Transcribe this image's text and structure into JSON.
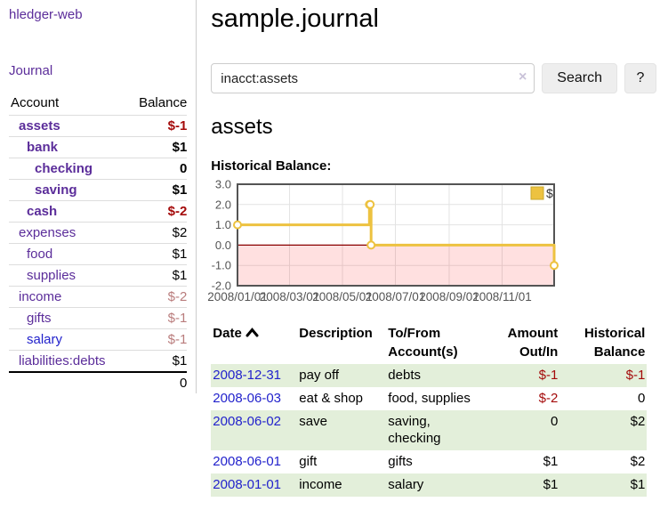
{
  "app": {
    "brand": "hledger-web"
  },
  "sidebar": {
    "nav_journal": "Journal",
    "accounts": {
      "col_account": "Account",
      "col_balance": "Balance",
      "rows": [
        {
          "name": "assets",
          "balance": "$-1",
          "indent": 1,
          "emph": true,
          "amount": "neg",
          "link": "purple"
        },
        {
          "name": "bank",
          "balance": "$1",
          "indent": 2,
          "emph": true,
          "amount": "pos",
          "link": "purple"
        },
        {
          "name": "checking",
          "balance": "0",
          "indent": 3,
          "emph": true,
          "amount": "pos",
          "link": "purple"
        },
        {
          "name": "saving",
          "balance": "$1",
          "indent": 3,
          "emph": true,
          "amount": "pos",
          "link": "purple"
        },
        {
          "name": "cash",
          "balance": "$-2",
          "indent": 2,
          "emph": true,
          "amount": "neg",
          "link": "purple"
        },
        {
          "name": "expenses",
          "balance": "$2",
          "indent": 1,
          "emph": false,
          "amount": "pos",
          "link": "purple"
        },
        {
          "name": "food",
          "balance": "$1",
          "indent": 2,
          "emph": false,
          "amount": "pos",
          "link": "purple"
        },
        {
          "name": "supplies",
          "balance": "$1",
          "indent": 2,
          "emph": false,
          "amount": "pos",
          "link": "purple"
        },
        {
          "name": "income",
          "balance": "$-2",
          "indent": 1,
          "emph": false,
          "amount": "negmuted",
          "link": "purple"
        },
        {
          "name": "gifts",
          "balance": "$-1",
          "indent": 2,
          "emph": false,
          "amount": "negmuted",
          "link": "purple"
        },
        {
          "name": "salary",
          "balance": "$-1",
          "indent": 2,
          "emph": false,
          "amount": "negmuted",
          "link": "blue"
        },
        {
          "name": "liabilities:debts",
          "balance": "$1",
          "indent": 1,
          "emph": false,
          "amount": "pos",
          "link": "purple"
        }
      ],
      "total": "0"
    }
  },
  "main": {
    "title": "sample.journal",
    "search": {
      "value": "inacct:assets",
      "clear_icon": "×",
      "button": "Search",
      "help_button": "?"
    },
    "account_heading": "assets"
  },
  "register": {
    "columns": [
      {
        "label": "Date",
        "align": "left",
        "sorted": "asc"
      },
      {
        "label": "Description",
        "align": "left"
      },
      {
        "label": "To/From Account(s)",
        "align": "left"
      },
      {
        "label": "Amount Out/In",
        "align": "right"
      },
      {
        "label": "Historical Balance",
        "align": "right"
      }
    ],
    "rows": [
      {
        "date": "2008-12-31",
        "description": "pay off",
        "accounts": "debts",
        "amount": "$-1",
        "amount_neg": true,
        "balance": "$-1",
        "balance_neg": true
      },
      {
        "date": "2008-06-03",
        "description": "eat & shop",
        "accounts": "food, supplies",
        "amount": "$-2",
        "amount_neg": true,
        "balance": "0",
        "balance_neg": false
      },
      {
        "date": "2008-06-02",
        "description": "save",
        "accounts": "saving, checking",
        "amount": "0",
        "amount_neg": false,
        "balance": "$2",
        "balance_neg": false
      },
      {
        "date": "2008-06-01",
        "description": "gift",
        "accounts": "gifts",
        "amount": "$1",
        "amount_neg": false,
        "balance": "$2",
        "balance_neg": false
      },
      {
        "date": "2008-01-01",
        "description": "income",
        "accounts": "salary",
        "amount": "$1",
        "amount_neg": false,
        "balance": "$1",
        "balance_neg": false
      }
    ]
  },
  "chart_data": {
    "type": "line",
    "title": "Historical Balance:",
    "step": true,
    "x_range": [
      "2008-01-01",
      "2008-12-31"
    ],
    "x_ticks": [
      {
        "date": "2008-01-01",
        "label": "2008/01/01"
      },
      {
        "date": "2008-03-01",
        "label": "2008/03/01"
      },
      {
        "date": "2008-05-01",
        "label": "2008/05/01"
      },
      {
        "date": "2008-07-01",
        "label": "2008/07/01"
      },
      {
        "date": "2008-09-01",
        "label": "2008/09/01"
      },
      {
        "date": "2008-11-01",
        "label": "2008/11/01"
      }
    ],
    "y_ticks": [
      3.0,
      2.0,
      1.0,
      0.0,
      -1.0,
      -2.0
    ],
    "ylim": [
      -2,
      3
    ],
    "series": [
      {
        "name": "$",
        "color": "#edc240",
        "points": [
          {
            "date": "2008-01-01",
            "value": 1
          },
          {
            "date": "2008-06-01",
            "value": 2
          },
          {
            "date": "2008-06-02",
            "value": 2
          },
          {
            "date": "2008-06-03",
            "value": 0
          },
          {
            "date": "2008-12-31",
            "value": -1
          }
        ]
      }
    ],
    "legend": {
      "label": "$",
      "position": "top-right"
    },
    "negative_zone": {
      "below": 0,
      "color": "rgba(255,0,0,0.12)"
    },
    "zero_line_color": "#8b0000",
    "colors": {
      "border": "#545454",
      "grid": "#e3e3e3",
      "tick_text": "#545454",
      "legend_box_border": "#c9a82e"
    }
  },
  "colors": {
    "link_purple": "#5b2d9a",
    "link_blue": "#2222cc",
    "neg_strong": "#a40a0a",
    "neg_muted": "#b97c7c",
    "row_green": "#e3efda",
    "accent_yellow": "#edc240"
  }
}
